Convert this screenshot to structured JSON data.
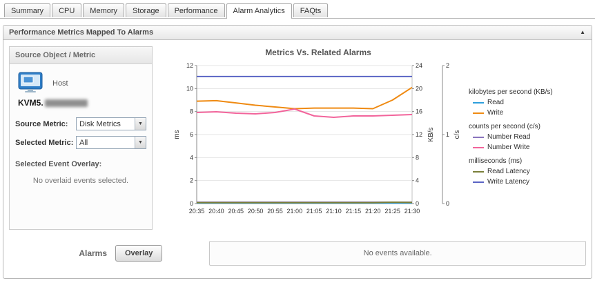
{
  "tabs": [
    "Summary",
    "CPU",
    "Memory",
    "Storage",
    "Performance",
    "Alarm Analytics",
    "FAQts"
  ],
  "active_tab": "Alarm Analytics",
  "panel": {
    "title": "Performance Metrics Mapped To Alarms"
  },
  "sidebar": {
    "header": "Source Object / Metric",
    "host_type": "Host",
    "host_name": "KVM5.",
    "source_metric_label": "Source Metric:",
    "source_metric_value": "Disk Metrics",
    "selected_metric_label": "Selected Metric:",
    "selected_metric_value": "All",
    "event_overlay_label": "Selected Event Overlay:",
    "event_overlay_empty": "No overlaid events selected."
  },
  "chart_data": {
    "type": "line",
    "title": "Metrics Vs. Related Alarms",
    "x": [
      "20:35",
      "20:40",
      "20:45",
      "20:50",
      "20:55",
      "21:00",
      "21:05",
      "21:10",
      "21:15",
      "21:20",
      "21:25",
      "21:30"
    ],
    "axes": {
      "left": {
        "label": "ms",
        "min": 0,
        "max": 12,
        "ticks": [
          0,
          2,
          4,
          6,
          8,
          10,
          12
        ]
      },
      "right1": {
        "label": "KB/s",
        "min": 0,
        "max": 24,
        "ticks": [
          0,
          4,
          8,
          12,
          16,
          20,
          24
        ]
      },
      "right2": {
        "label": "c/s",
        "min": 0,
        "max": 2,
        "ticks": [
          0,
          1,
          2
        ]
      }
    },
    "series": [
      {
        "name": "Read",
        "axis": "right1",
        "color": "#2d9fdc",
        "values": [
          0.1,
          0.1,
          0.1,
          0.1,
          0.1,
          0.1,
          0.1,
          0.1,
          0.1,
          0.1,
          0.1,
          0.1
        ]
      },
      {
        "name": "Write",
        "axis": "right1",
        "color": "#ef8a12",
        "values": [
          17.8,
          17.9,
          17.5,
          17.1,
          16.8,
          16.5,
          16.6,
          16.6,
          16.6,
          16.5,
          18.0,
          20.2
        ]
      },
      {
        "name": "Number Read",
        "axis": "right2",
        "color": "#8a74bd",
        "values": [
          0.02,
          0.02,
          0.02,
          0.02,
          0.02,
          0.02,
          0.02,
          0.02,
          0.02,
          0.02,
          0.02,
          0.02
        ]
      },
      {
        "name": "Number Write",
        "axis": "right2",
        "color": "#f2649b",
        "values": [
          1.32,
          1.33,
          1.31,
          1.3,
          1.32,
          1.37,
          1.27,
          1.25,
          1.27,
          1.27,
          1.28,
          1.29
        ]
      },
      {
        "name": "Read Latency",
        "axis": "left",
        "color": "#7a7f38",
        "values": [
          0.08,
          0.08,
          0.08,
          0.08,
          0.08,
          0.08,
          0.08,
          0.08,
          0.08,
          0.08,
          0.12,
          0.1
        ]
      },
      {
        "name": "Write Latency",
        "axis": "left",
        "color": "#5a64c4",
        "values": [
          11.05,
          11.05,
          11.05,
          11.05,
          11.05,
          11.05,
          11.05,
          11.05,
          11.05,
          11.05,
          11.05,
          11.05
        ]
      }
    ],
    "legend_groups": [
      {
        "heading": "kilobytes per second (KB/s)",
        "items": [
          "Read",
          "Write"
        ]
      },
      {
        "heading": "counts per second (c/s)",
        "items": [
          "Number Read",
          "Number Write"
        ]
      },
      {
        "heading": "milliseconds (ms)",
        "items": [
          "Read Latency",
          "Write Latency"
        ]
      }
    ],
    "grid": true,
    "legend_position": "right"
  },
  "alarms": {
    "label": "Alarms",
    "overlay_button": "Overlay",
    "empty_text": "No events available."
  }
}
